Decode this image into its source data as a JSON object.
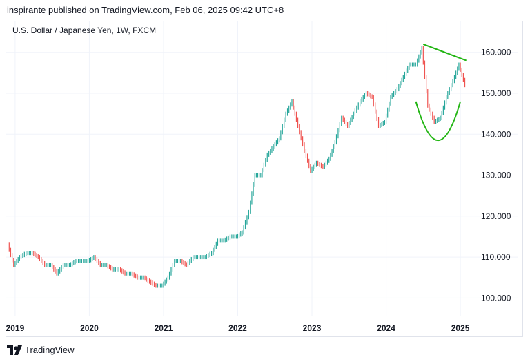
{
  "header": {
    "published": "inspirante published on TradingView.com, Feb 06, 2025 09:42 UTC+8"
  },
  "symbol": {
    "title": "U.S. Dollar / Japanese Yen, 1W, FXCM"
  },
  "footer": {
    "brand": "TradingView"
  },
  "colors": {
    "up": "#26a69a",
    "down": "#ef5350",
    "annotation": "#22b513",
    "grid": "#f0f3fa",
    "text": "#131722"
  },
  "chart_data": {
    "type": "line",
    "title": "U.S. Dollar / Japanese Yen, 1W, FXCM",
    "x_ticks": [
      "2019",
      "2020",
      "2021",
      "2022",
      "2023",
      "2024",
      "2025"
    ],
    "y_ticks": [
      "100.000",
      "110.000",
      "120.000",
      "130.000",
      "140.000",
      "150.000",
      "160.000"
    ],
    "ylim": [
      95.5,
      163.5
    ],
    "xlim": [
      2018.88,
      2025.12
    ],
    "grid": true,
    "series": [
      {
        "x": [
          2018.92,
          2019.0,
          2019.08,
          2019.17,
          2019.25,
          2019.33,
          2019.42,
          2019.5,
          2019.58,
          2019.67,
          2019.75,
          2019.83,
          2019.92,
          2020.0,
          2020.08,
          2020.17,
          2020.25,
          2020.33,
          2020.42,
          2020.5,
          2020.58,
          2020.67,
          2020.75,
          2020.83,
          2020.92,
          2021.0,
          2021.08,
          2021.17,
          2021.25,
          2021.33,
          2021.42,
          2021.5,
          2021.58,
          2021.67,
          2021.75,
          2021.83,
          2021.92,
          2022.0,
          2022.08,
          2022.17,
          2022.25,
          2022.33,
          2022.42,
          2022.5,
          2022.58,
          2022.67,
          2022.75,
          2022.83,
          2022.92,
          2023.0,
          2023.08,
          2023.17,
          2023.25,
          2023.33,
          2023.42,
          2023.5,
          2023.58,
          2023.67,
          2023.75,
          2023.83,
          2023.92,
          2024.0,
          2024.08,
          2024.17,
          2024.25,
          2024.33,
          2024.42,
          2024.5,
          2024.58,
          2024.67,
          2024.75,
          2024.83,
          2024.92,
          2025.0,
          2025.08
        ],
        "values": [
          113,
          108,
          110,
          111,
          111,
          110,
          108,
          108,
          106,
          108,
          108,
          109,
          109,
          109,
          110,
          108,
          108,
          107,
          107,
          106,
          106,
          105,
          105,
          104,
          103,
          103,
          105,
          109,
          109,
          108,
          110,
          110,
          110,
          111,
          114,
          114,
          115,
          115,
          116,
          121,
          130,
          130,
          135,
          137,
          139,
          145,
          148,
          142,
          136,
          131,
          133,
          132,
          134,
          138,
          144,
          142,
          145,
          148,
          150,
          149,
          142,
          143,
          149,
          151,
          154,
          157,
          157,
          161,
          147,
          143,
          144,
          149,
          153,
          157,
          152
        ]
      }
    ],
    "annotations": [
      {
        "type": "trendline",
        "points": [
          [
            2024.5,
            162.0
          ],
          [
            2025.08,
            158.0
          ]
        ]
      },
      {
        "type": "arc",
        "points": [
          [
            2024.4,
            148.0
          ],
          [
            2024.7,
            138.5
          ],
          [
            2025.0,
            148.0
          ]
        ]
      }
    ]
  }
}
